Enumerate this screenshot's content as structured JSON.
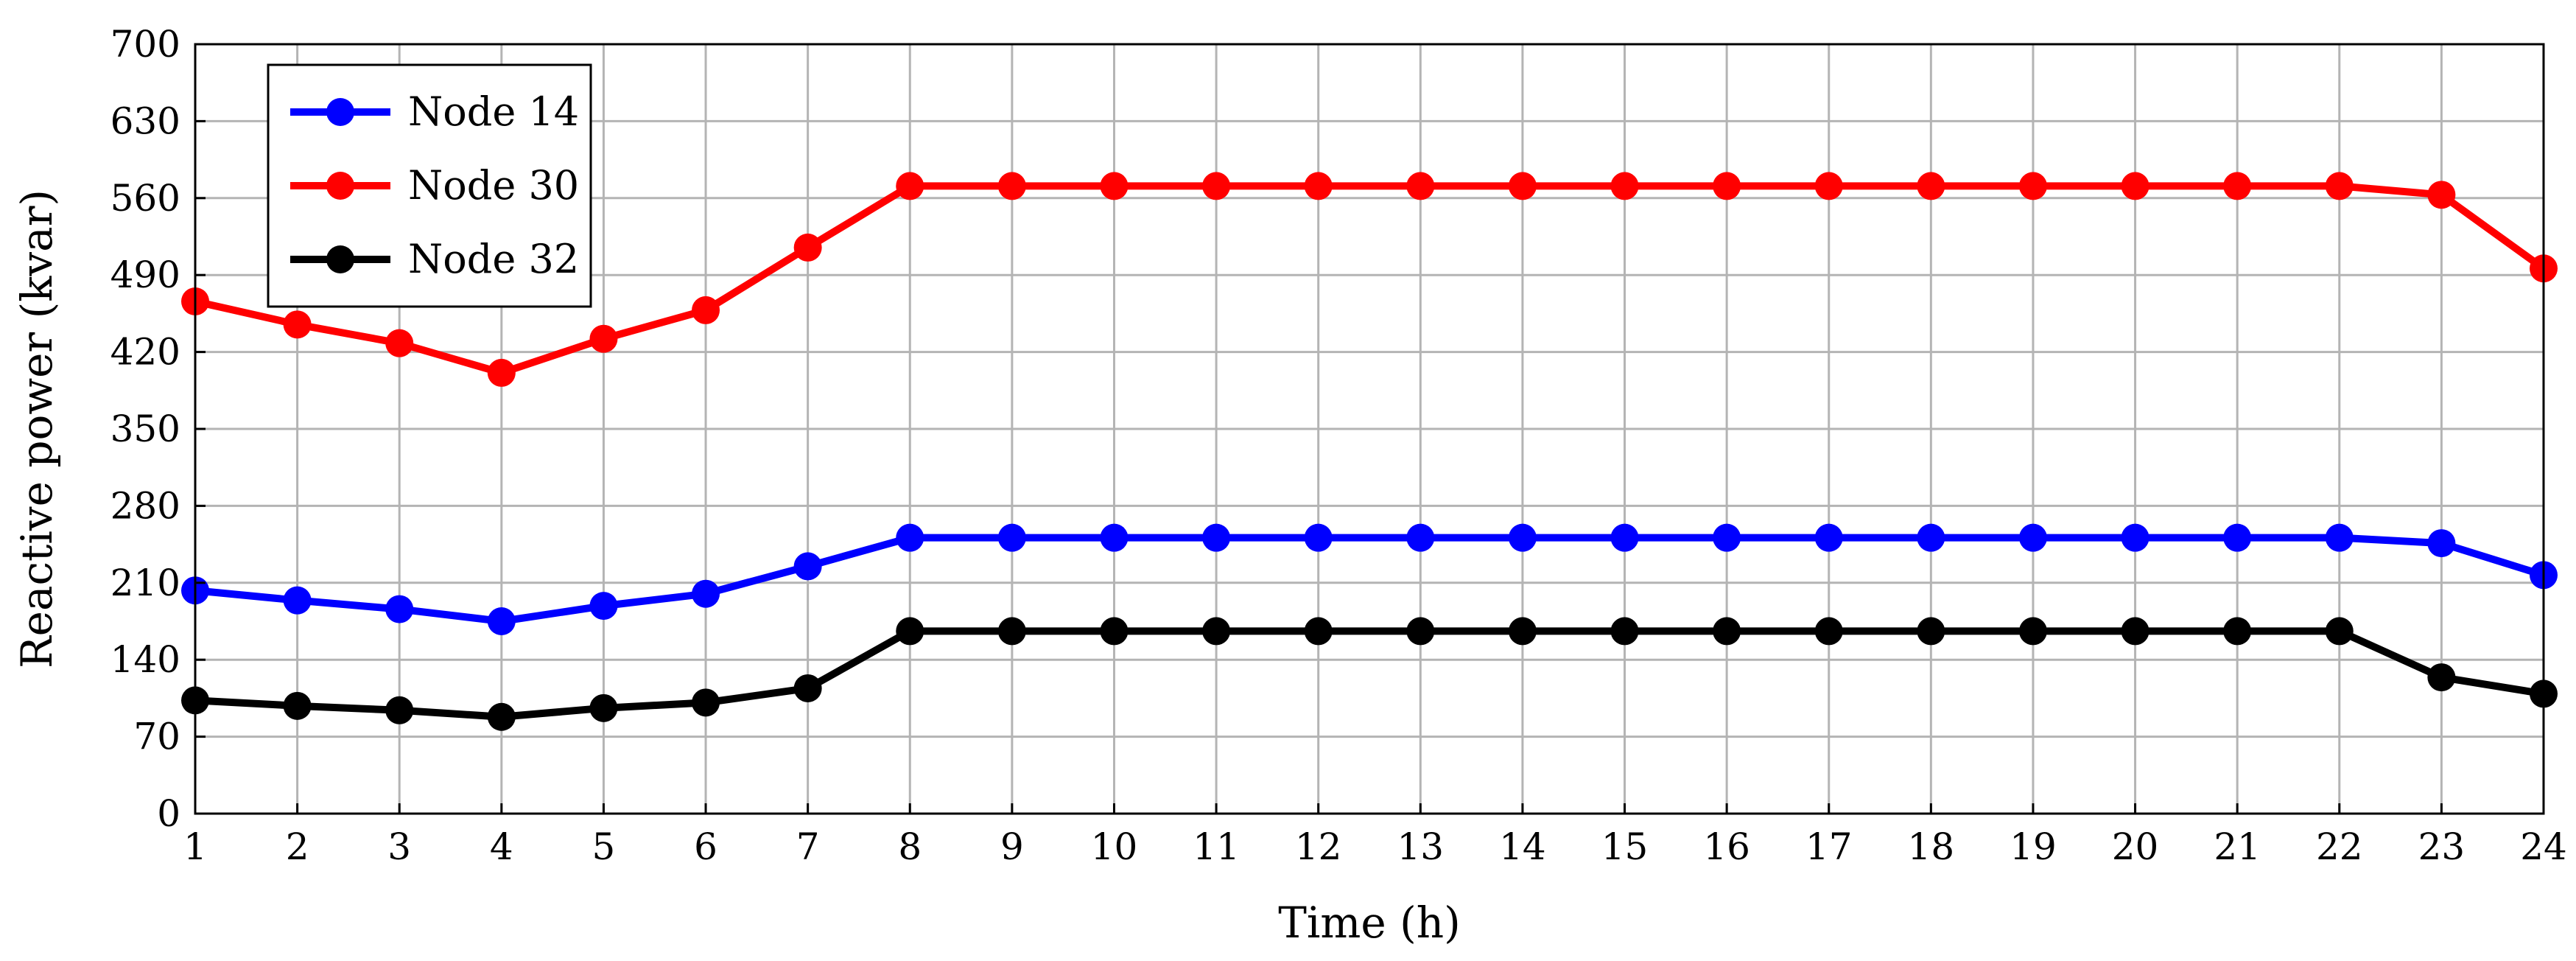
{
  "chart_data": {
    "type": "line",
    "title": "",
    "xlabel": "Time (h)",
    "ylabel": "Reactive power (kvar)",
    "xlim": [
      1,
      24
    ],
    "ylim": [
      0,
      700
    ],
    "x": [
      1,
      2,
      3,
      4,
      5,
      6,
      7,
      8,
      9,
      10,
      11,
      12,
      13,
      14,
      15,
      16,
      17,
      18,
      19,
      20,
      21,
      22,
      23,
      24
    ],
    "xticks": [
      "1",
      "2",
      "3",
      "4",
      "5",
      "6",
      "7",
      "8",
      "9",
      "10",
      "11",
      "12",
      "13",
      "14",
      "15",
      "16",
      "17",
      "18",
      "19",
      "20",
      "21",
      "22",
      "23",
      "24"
    ],
    "yticks": [
      0,
      70,
      140,
      210,
      280,
      350,
      420,
      490,
      560,
      630,
      700
    ],
    "grid": true,
    "legend_position": "top-left",
    "series": [
      {
        "name": "Node 14",
        "color": "#0000ff",
        "values": [
          203,
          194,
          186,
          175,
          189,
          200,
          225,
          251,
          251,
          251,
          251,
          251,
          251,
          251,
          251,
          251,
          251,
          251,
          251,
          251,
          251,
          251,
          246,
          217
        ]
      },
      {
        "name": "Node 30",
        "color": "#ff0000",
        "values": [
          466,
          445,
          428,
          401,
          432,
          458,
          515,
          571,
          571,
          571,
          571,
          571,
          571,
          571,
          571,
          571,
          571,
          571,
          571,
          571,
          571,
          571,
          563,
          496
        ]
      },
      {
        "name": "Node 32",
        "color": "#000000",
        "values": [
          103,
          98,
          94,
          88,
          96,
          101,
          114,
          166,
          166,
          166,
          166,
          166,
          166,
          166,
          166,
          166,
          166,
          166,
          166,
          166,
          166,
          166,
          124,
          109
        ]
      }
    ]
  }
}
